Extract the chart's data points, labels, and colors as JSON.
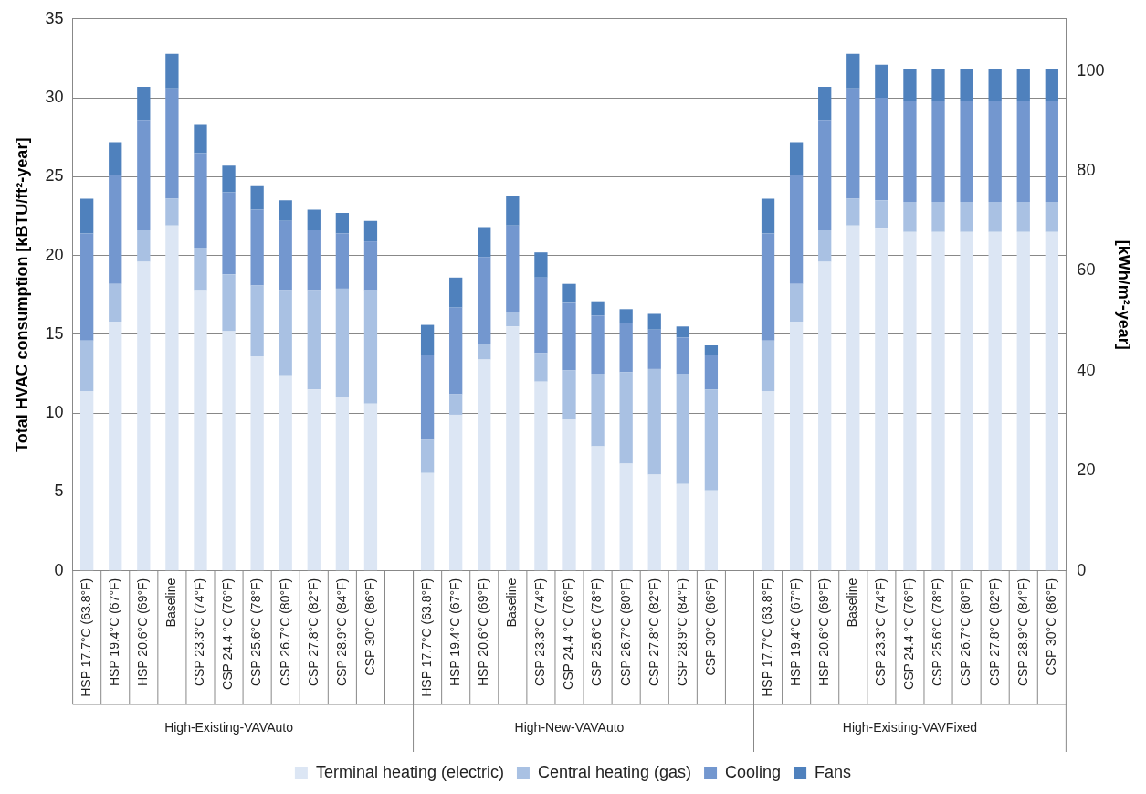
{
  "chart_data": {
    "type": "bar",
    "stacked": true,
    "categories": [
      "HSP 17.7°C (63.8°F)",
      "HSP 19.4°C (67°F)",
      "HSP 20.6°C (69°F)",
      "Baseline",
      "CSP 23.3°C (74°F)",
      "CSP 24.4 °C (76°F)",
      "CSP 25.6°C (78°F)",
      "CSP 26.7°C (80°F)",
      "CSP 27.8°C (82°F)",
      "CSP 28.9°C (84°F)",
      "CSP 30°C (86°F)",
      null,
      "HSP 17.7°C (63.8°F)",
      "HSP 19.4°C (67°F)",
      "HSP 20.6°C (69°F)",
      "Baseline",
      "CSP 23.3°C (74°F)",
      "CSP 24.4 °C (76°F)",
      "CSP 25.6°C (78°F)",
      "CSP 26.7°C (80°F)",
      "CSP 27.8°C (82°F)",
      "CSP 28.9°C (84°F)",
      "CSP 30°C (86°F)",
      null,
      "HSP 17.7°C (63.8°F)",
      "HSP 19.4°C (67°F)",
      "HSP 20.6°C (69°F)",
      "Baseline",
      "CSP 23.3°C (74°F)",
      "CSP 24.4 °C (76°F)",
      "CSP 25.6°C (78°F)",
      "CSP 26.7°C (80°F)",
      "CSP 27.8°C (82°F)",
      "CSP 28.9°C (84°F)",
      "CSP 30°C (86°F)"
    ],
    "series": [
      {
        "name": "Terminal heating (electric)",
        "color": "#dce6f4",
        "values": [
          11.4,
          15.8,
          19.6,
          21.9,
          17.8,
          15.2,
          13.6,
          12.4,
          11.5,
          11.0,
          10.6,
          null,
          6.2,
          9.9,
          13.4,
          15.5,
          12.0,
          9.6,
          7.9,
          6.8,
          6.1,
          5.5,
          5.1,
          null,
          11.4,
          15.8,
          19.6,
          21.9,
          21.7,
          21.5,
          21.5,
          21.5,
          21.5,
          21.5,
          21.5
        ]
      },
      {
        "name": "Central heating (gas)",
        "color": "#a9c1e3",
        "values": [
          3.2,
          2.4,
          2.0,
          1.7,
          2.7,
          3.6,
          4.5,
          5.4,
          6.3,
          6.9,
          7.2,
          null,
          2.1,
          1.3,
          1.0,
          0.9,
          1.8,
          3.1,
          4.6,
          5.8,
          6.7,
          7.0,
          6.4,
          null,
          3.2,
          2.4,
          2.0,
          1.7,
          1.8,
          1.9,
          1.9,
          1.9,
          1.9,
          1.9,
          1.9
        ]
      },
      {
        "name": "Cooling",
        "color": "#7397cf",
        "values": [
          6.8,
          6.9,
          7.0,
          7.0,
          6.0,
          5.2,
          4.8,
          4.4,
          3.8,
          3.5,
          3.1,
          null,
          5.4,
          5.5,
          5.5,
          5.5,
          4.8,
          4.3,
          3.7,
          3.1,
          2.5,
          2.3,
          2.2,
          null,
          6.8,
          6.9,
          7.0,
          7.0,
          6.5,
          6.4,
          6.4,
          6.4,
          6.4,
          6.4,
          6.4
        ]
      },
      {
        "name": "Fans",
        "color": "#4f81bd",
        "values": [
          2.2,
          2.1,
          2.1,
          2.2,
          1.8,
          1.7,
          1.5,
          1.3,
          1.3,
          1.3,
          1.3,
          null,
          1.9,
          1.9,
          1.9,
          1.9,
          1.6,
          1.2,
          0.9,
          0.9,
          1.0,
          0.7,
          0.6,
          null,
          2.2,
          2.1,
          2.1,
          2.2,
          2.1,
          2.0,
          2.0,
          2.0,
          2.0,
          2.0,
          2.0
        ]
      }
    ],
    "ylabel": "Total HVAC consumption [kBTU/ft²-year]",
    "y2label": "[kWh/m²-year]",
    "ylim": [
      0,
      35
    ],
    "yticks": [
      0,
      5,
      10,
      15,
      20,
      25,
      30,
      35
    ],
    "y2lim": [
      0,
      110.4
    ],
    "y2ticks": [
      0,
      20,
      40,
      60,
      80,
      100
    ],
    "annotations": [
      "High-Existing-VAVAuto",
      "High-New-VAVAuto",
      "High-Existing-VAVFixed"
    ],
    "grid": "y",
    "legend": "bottom"
  }
}
